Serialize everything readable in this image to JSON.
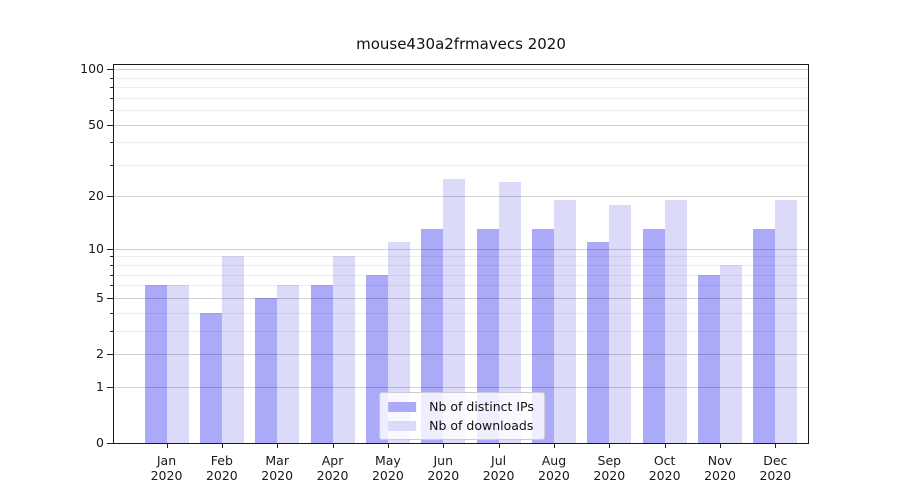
{
  "chart_data": {
    "type": "bar",
    "title": "mouse430a2frmavecs 2020",
    "months": [
      "Jan",
      "Feb",
      "Mar",
      "Apr",
      "May",
      "Jun",
      "Jul",
      "Aug",
      "Sep",
      "Oct",
      "Nov",
      "Dec"
    ],
    "year": "2020",
    "categories": [
      "Jan 2020",
      "Feb 2020",
      "Mar 2020",
      "Apr 2020",
      "May 2020",
      "Jun 2020",
      "Jul 2020",
      "Aug 2020",
      "Sep 2020",
      "Oct 2020",
      "Nov 2020",
      "Dec 2020"
    ],
    "series": [
      {
        "key": "distinct-ips",
        "name": "Nb of distinct IPs",
        "color": "#aaaaf8",
        "values": [
          6,
          4,
          5,
          6,
          7,
          13,
          13,
          13,
          11,
          13,
          7,
          13
        ]
      },
      {
        "key": "downloads",
        "name": "Nb of downloads",
        "color": "#dbdbf9",
        "values": [
          6,
          9,
          6,
          9,
          11,
          25,
          24,
          19,
          18,
          19,
          8,
          19
        ]
      }
    ],
    "y_axis": {
      "scale": "symlog",
      "major_ticks": [
        0,
        1,
        2,
        5,
        10,
        20,
        50,
        100
      ],
      "minor_ticks": [
        3,
        4,
        6,
        7,
        8,
        9,
        30,
        40,
        60,
        70,
        80,
        90
      ],
      "range": [
        0,
        107
      ]
    },
    "grid": "horizontal",
    "legend": {
      "position": "lower-center"
    }
  }
}
